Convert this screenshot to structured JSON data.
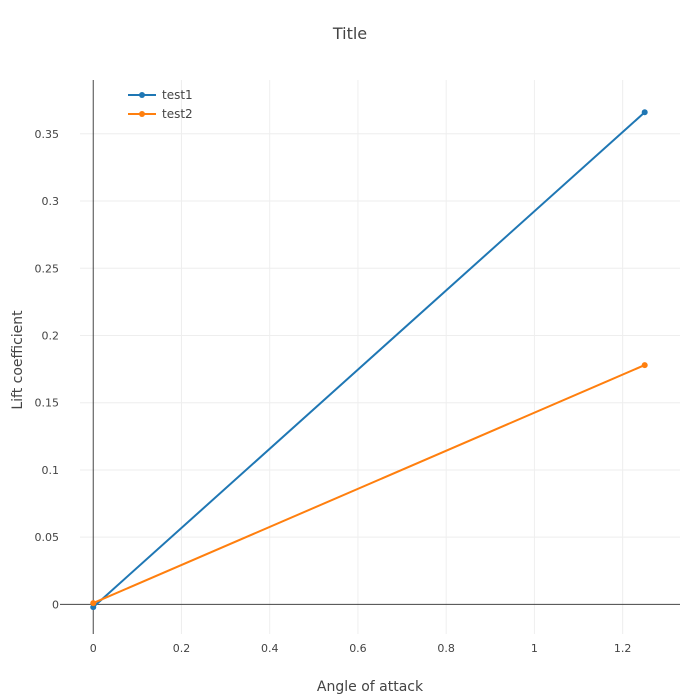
{
  "chart_data": {
    "type": "line",
    "title": "Title",
    "xlabel": "Angle of attack",
    "ylabel": "Lift coefficient",
    "xlim": [
      -0.03,
      1.33
    ],
    "ylim": [
      -0.022,
      0.39
    ],
    "xticks": [
      0,
      0.2,
      0.4,
      0.6,
      0.8,
      1,
      1.2
    ],
    "xtick_labels": [
      "0",
      "0.2",
      "0.4",
      "0.6",
      "0.8",
      "1",
      "1.2"
    ],
    "yticks": [
      0,
      0.05,
      0.1,
      0.15,
      0.2,
      0.25,
      0.3,
      0.35
    ],
    "ytick_labels": [
      "0",
      "0.05",
      "0.1",
      "0.15",
      "0.2",
      "0.25",
      "0.3",
      "0.35"
    ],
    "grid": true,
    "legend_position": "top-left",
    "series": [
      {
        "name": "test1",
        "color": "#1f77b4",
        "x": [
          0,
          1.25
        ],
        "y": [
          -0.002,
          0.366
        ]
      },
      {
        "name": "test2",
        "color": "#ff7f0e",
        "x": [
          0,
          1.25
        ],
        "y": [
          0.001,
          0.178
        ]
      }
    ]
  }
}
